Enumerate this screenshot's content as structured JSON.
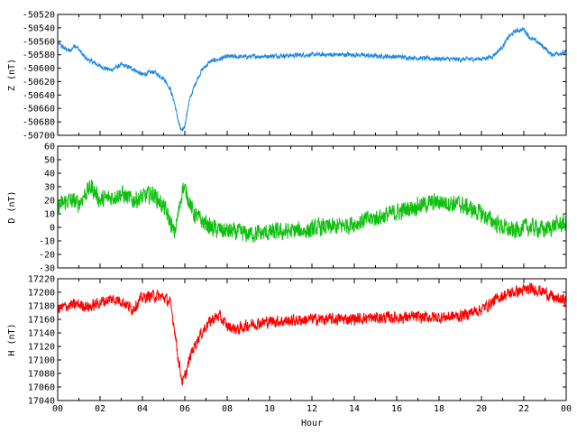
{
  "chart_data": [
    {
      "type": "line",
      "ylabel": "Z (nT)",
      "ylim": [
        -50700,
        -50520
      ],
      "yticks": [
        -50520,
        -50540,
        -50560,
        -50580,
        -50600,
        -50620,
        -50640,
        -50660,
        -50680,
        -50700
      ],
      "xlim": [
        0,
        24
      ],
      "color": "#1e88e5",
      "noise": 3,
      "series": [
        {
          "x": [
            0,
            0.3,
            0.6,
            0.8,
            1.0,
            1.3,
            1.6,
            2.0,
            2.5,
            3.0,
            3.5,
            4.0,
            4.5,
            5.0,
            5.3,
            5.5,
            5.7,
            5.85,
            6.0,
            6.2,
            6.5,
            6.8,
            7.2,
            7.6,
            8.0,
            9.0,
            10.0,
            11.0,
            12.0,
            13.0,
            14.0,
            15.0,
            16.0,
            17.0,
            18.0,
            19.0,
            20.0,
            20.5,
            21.0,
            21.3,
            21.6,
            22.0,
            22.3,
            22.6,
            23.0,
            23.3,
            23.6,
            24.0
          ],
          "y": [
            -50562,
            -50570,
            -50575,
            -50565,
            -50572,
            -50585,
            -50590,
            -50597,
            -50603,
            -50595,
            -50600,
            -50610,
            -50605,
            -50615,
            -50630,
            -50650,
            -50680,
            -50695,
            -50685,
            -50650,
            -50622,
            -50603,
            -50590,
            -50587,
            -50583,
            -50583,
            -50582,
            -50581,
            -50580,
            -50580,
            -50580,
            -50582,
            -50583,
            -50585,
            -50586,
            -50587,
            -50586,
            -50583,
            -50568,
            -50553,
            -50545,
            -50542,
            -50555,
            -50560,
            -50570,
            -50580,
            -50578,
            -50577
          ]
        }
      ]
    },
    {
      "type": "line",
      "ylabel": "D (nT)",
      "ylim": [
        -30,
        60
      ],
      "yticks": [
        60,
        50,
        40,
        30,
        20,
        10,
        0,
        -10,
        -20,
        -30
      ],
      "xlim": [
        0,
        24
      ],
      "color": "#10c010",
      "noise": 6,
      "series": [
        {
          "x": [
            0,
            0.5,
            1.0,
            1.3,
            1.6,
            2.0,
            2.5,
            3.0,
            3.5,
            4.0,
            4.5,
            5.0,
            5.3,
            5.5,
            5.7,
            5.9,
            6.1,
            6.4,
            6.8,
            7.2,
            7.6,
            8.0,
            9.0,
            10.0,
            11.0,
            12.0,
            12.3,
            13.0,
            14.0,
            15.0,
            16.0,
            17.0,
            18.0,
            19.0,
            20.0,
            20.5,
            21.0,
            21.5,
            22.0,
            22.5,
            23.0,
            23.5,
            24.0
          ],
          "y": [
            15,
            20,
            18,
            25,
            30,
            20,
            22,
            25,
            20,
            22,
            25,
            15,
            5,
            -5,
            10,
            30,
            25,
            10,
            5,
            0,
            -2,
            -3,
            -5,
            -4,
            -3,
            -2,
            0,
            0,
            3,
            7,
            11,
            16,
            19,
            17,
            10,
            5,
            0,
            -3,
            0,
            0,
            -2,
            2,
            3
          ]
        }
      ]
    },
    {
      "type": "line",
      "ylabel": "H (nT)",
      "ylim": [
        17040,
        17220
      ],
      "yticks": [
        17220,
        17200,
        17180,
        17160,
        17140,
        17120,
        17100,
        17080,
        17060,
        17040
      ],
      "xlim": [
        0,
        24
      ],
      "xticks": [
        "00",
        "02",
        "04",
        "06",
        "08",
        "10",
        "12",
        "14",
        "16",
        "18",
        "20",
        "22",
        "00"
      ],
      "xlabel": "Hour",
      "color": "#ff0000",
      "noise": 8,
      "series": [
        {
          "x": [
            0,
            0.5,
            1.0,
            1.5,
            2.0,
            2.5,
            3.0,
            3.5,
            4.0,
            4.5,
            5.0,
            5.3,
            5.5,
            5.7,
            5.9,
            6.1,
            6.3,
            6.6,
            7.0,
            7.3,
            7.6,
            8.0,
            8.5,
            9.0,
            10.0,
            11.0,
            12.0,
            13.0,
            14.0,
            15.0,
            16.0,
            17.0,
            18.0,
            19.0,
            20.0,
            20.5,
            21.0,
            21.5,
            22.0,
            22.5,
            23.0,
            23.5,
            24.0
          ],
          "y": [
            17175,
            17180,
            17182,
            17178,
            17185,
            17190,
            17188,
            17175,
            17192,
            17195,
            17193,
            17185,
            17150,
            17100,
            17065,
            17085,
            17110,
            17130,
            17150,
            17160,
            17165,
            17150,
            17145,
            17152,
            17157,
            17158,
            17160,
            17160,
            17161,
            17162,
            17163,
            17163,
            17163,
            17165,
            17175,
            17185,
            17195,
            17200,
            17203,
            17205,
            17200,
            17190,
            17188
          ]
        }
      ]
    }
  ]
}
